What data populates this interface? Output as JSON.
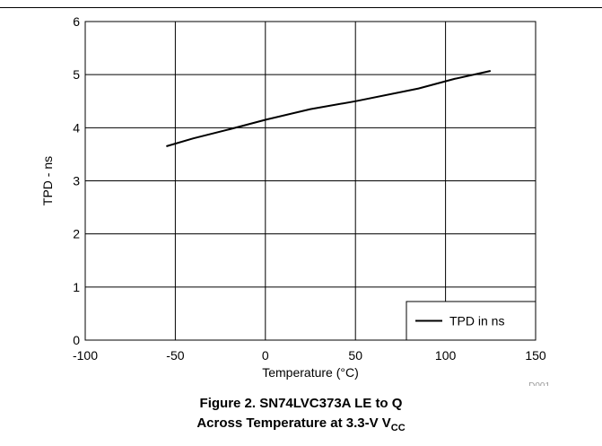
{
  "chart_data": {
    "type": "line",
    "xlabel": "Temperature (°C)",
    "ylabel": "TPD - ns",
    "xlim": [
      -100,
      150
    ],
    "ylim": [
      0,
      6
    ],
    "x_ticks": [
      -100,
      -50,
      0,
      50,
      100,
      150
    ],
    "y_ticks": [
      0,
      1,
      2,
      3,
      4,
      5,
      6
    ],
    "grid": true,
    "legend_position": "bottom-right",
    "series": [
      {
        "name": "TPD in ns",
        "x": [
          -55,
          -40,
          -20,
          0,
          25,
          50,
          85,
          105,
          125
        ],
        "y": [
          3.65,
          3.8,
          3.97,
          4.15,
          4.35,
          4.5,
          4.74,
          4.92,
          5.07
        ]
      }
    ]
  },
  "figure_id": "D001",
  "caption": {
    "line1": "Figure 2. SN74LVC373A LE to Q",
    "line2_prefix": "Across Temperature at 3.3-V V",
    "line2_sub": "CC"
  },
  "colors": {
    "line": "#000000",
    "grid": "#000000",
    "background": "#ffffff"
  }
}
